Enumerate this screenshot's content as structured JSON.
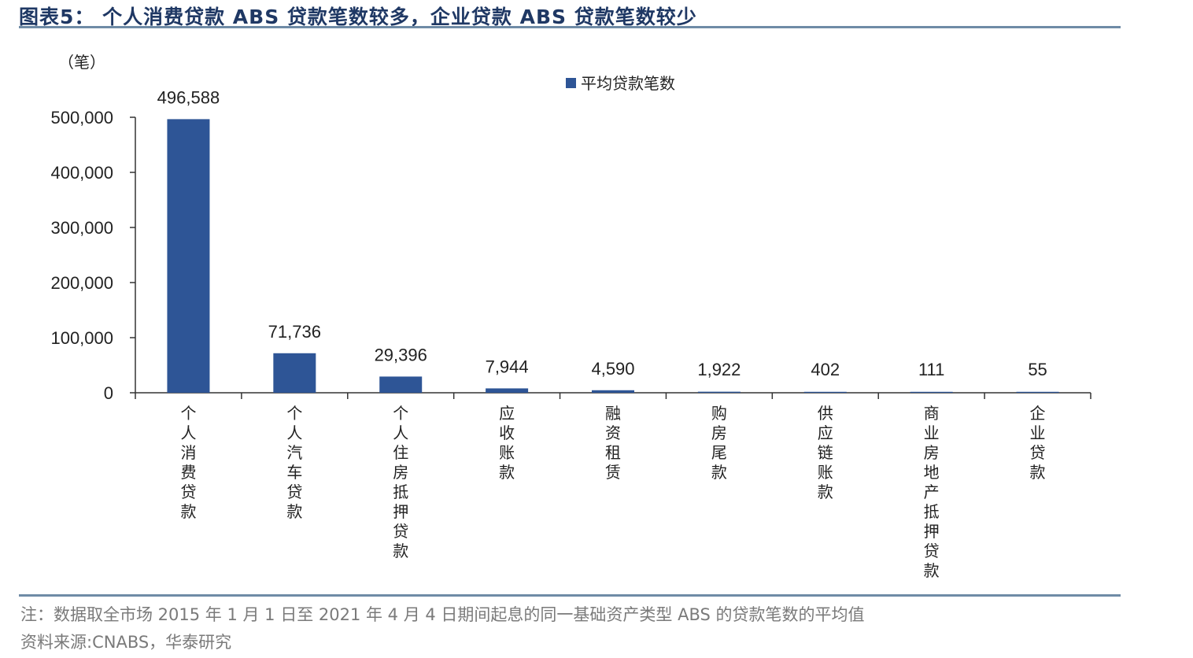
{
  "header": {
    "title": "图表5： 个人消费贷款 ABS 贷款笔数较多，企业贷款 ABS 贷款笔数较少"
  },
  "footer": {
    "note": "注：数据取全市场 2015 年 1 月 1 日至 2021 年 4 月 4 日期间起息的同一基础资产类型 ABS 的贷款笔数的平均值",
    "source": "资料来源:CNABS，华泰研究"
  },
  "colors": {
    "bar": "#2e5596",
    "title": "#1f3864",
    "rule": "#6f8ba6"
  },
  "chart_data": {
    "type": "bar",
    "unit_label": "（笔）",
    "categories": [
      "个人消费贷款",
      "个人汽车贷款",
      "个人住房抵押贷款",
      "应收账款",
      "融资租赁",
      "购房尾款",
      "供应链账款",
      "商业房地产抵押贷款",
      "企业贷款"
    ],
    "series": [
      {
        "name": "平均贷款笔数",
        "values": [
          496588,
          71736,
          29396,
          7944,
          4590,
          1922,
          402,
          111,
          55
        ],
        "data_labels": [
          "496,588",
          "71,736",
          "29,396",
          "7,944",
          "4,590",
          "1,922",
          "402",
          "111",
          "55"
        ]
      }
    ],
    "y_ticks": [
      0,
      100000,
      200000,
      300000,
      400000,
      500000
    ],
    "y_tick_labels": [
      "0",
      "100,000",
      "200,000",
      "300,000",
      "400,000",
      "500,000"
    ],
    "ylim": [
      0,
      500000
    ],
    "grid": false,
    "legend_position": "top-center"
  }
}
